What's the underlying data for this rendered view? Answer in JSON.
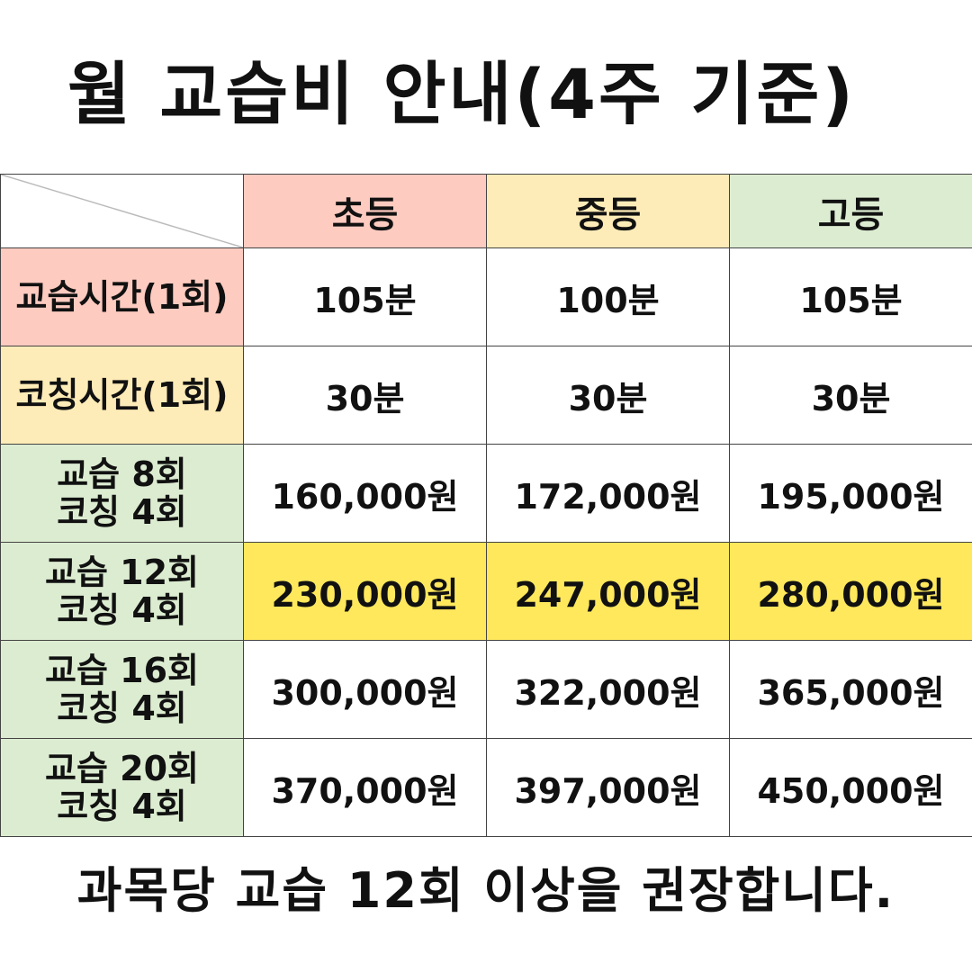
{
  "title": "월 교습비 안내(4주 기준)",
  "colors": {
    "elementary": "#fdcbc0",
    "middle": "#feecb8",
    "high": "#dcecd1",
    "highlight": "#ffe85c",
    "border": "#444444"
  },
  "header": {
    "columns": [
      {
        "label": "초등",
        "color": "#fdcbc0"
      },
      {
        "label": "중등",
        "color": "#feecb8"
      },
      {
        "label": "고등",
        "color": "#dcecd1"
      }
    ]
  },
  "rows": [
    {
      "label": [
        "교습시간(1회)"
      ],
      "color": "#fdcbc0",
      "values": [
        "105분",
        "100분",
        "105분"
      ],
      "highlight": false
    },
    {
      "label": [
        "코칭시간(1회)"
      ],
      "color": "#feecb8",
      "values": [
        "30분",
        "30분",
        "30분"
      ],
      "highlight": false
    },
    {
      "label": [
        "교습 8회",
        "코칭 4회"
      ],
      "color": "#dcecd1",
      "values": [
        "160,000원",
        "172,000원",
        "195,000원"
      ],
      "highlight": false
    },
    {
      "label": [
        "교습 12회",
        "코칭 4회"
      ],
      "color": "#dcecd1",
      "values": [
        "230,000원",
        "247,000원",
        "280,000원"
      ],
      "highlight": true
    },
    {
      "label": [
        "교습 16회",
        "코칭 4회"
      ],
      "color": "#dcecd1",
      "values": [
        "300,000원",
        "322,000원",
        "365,000원"
      ],
      "highlight": false
    },
    {
      "label": [
        "교습 20회",
        "코칭 4회"
      ],
      "color": "#dcecd1",
      "values": [
        "370,000원",
        "397,000원",
        "450,000원"
      ],
      "highlight": false
    }
  ],
  "footer": "과목당 교습 12회 이상을 권장합니다."
}
